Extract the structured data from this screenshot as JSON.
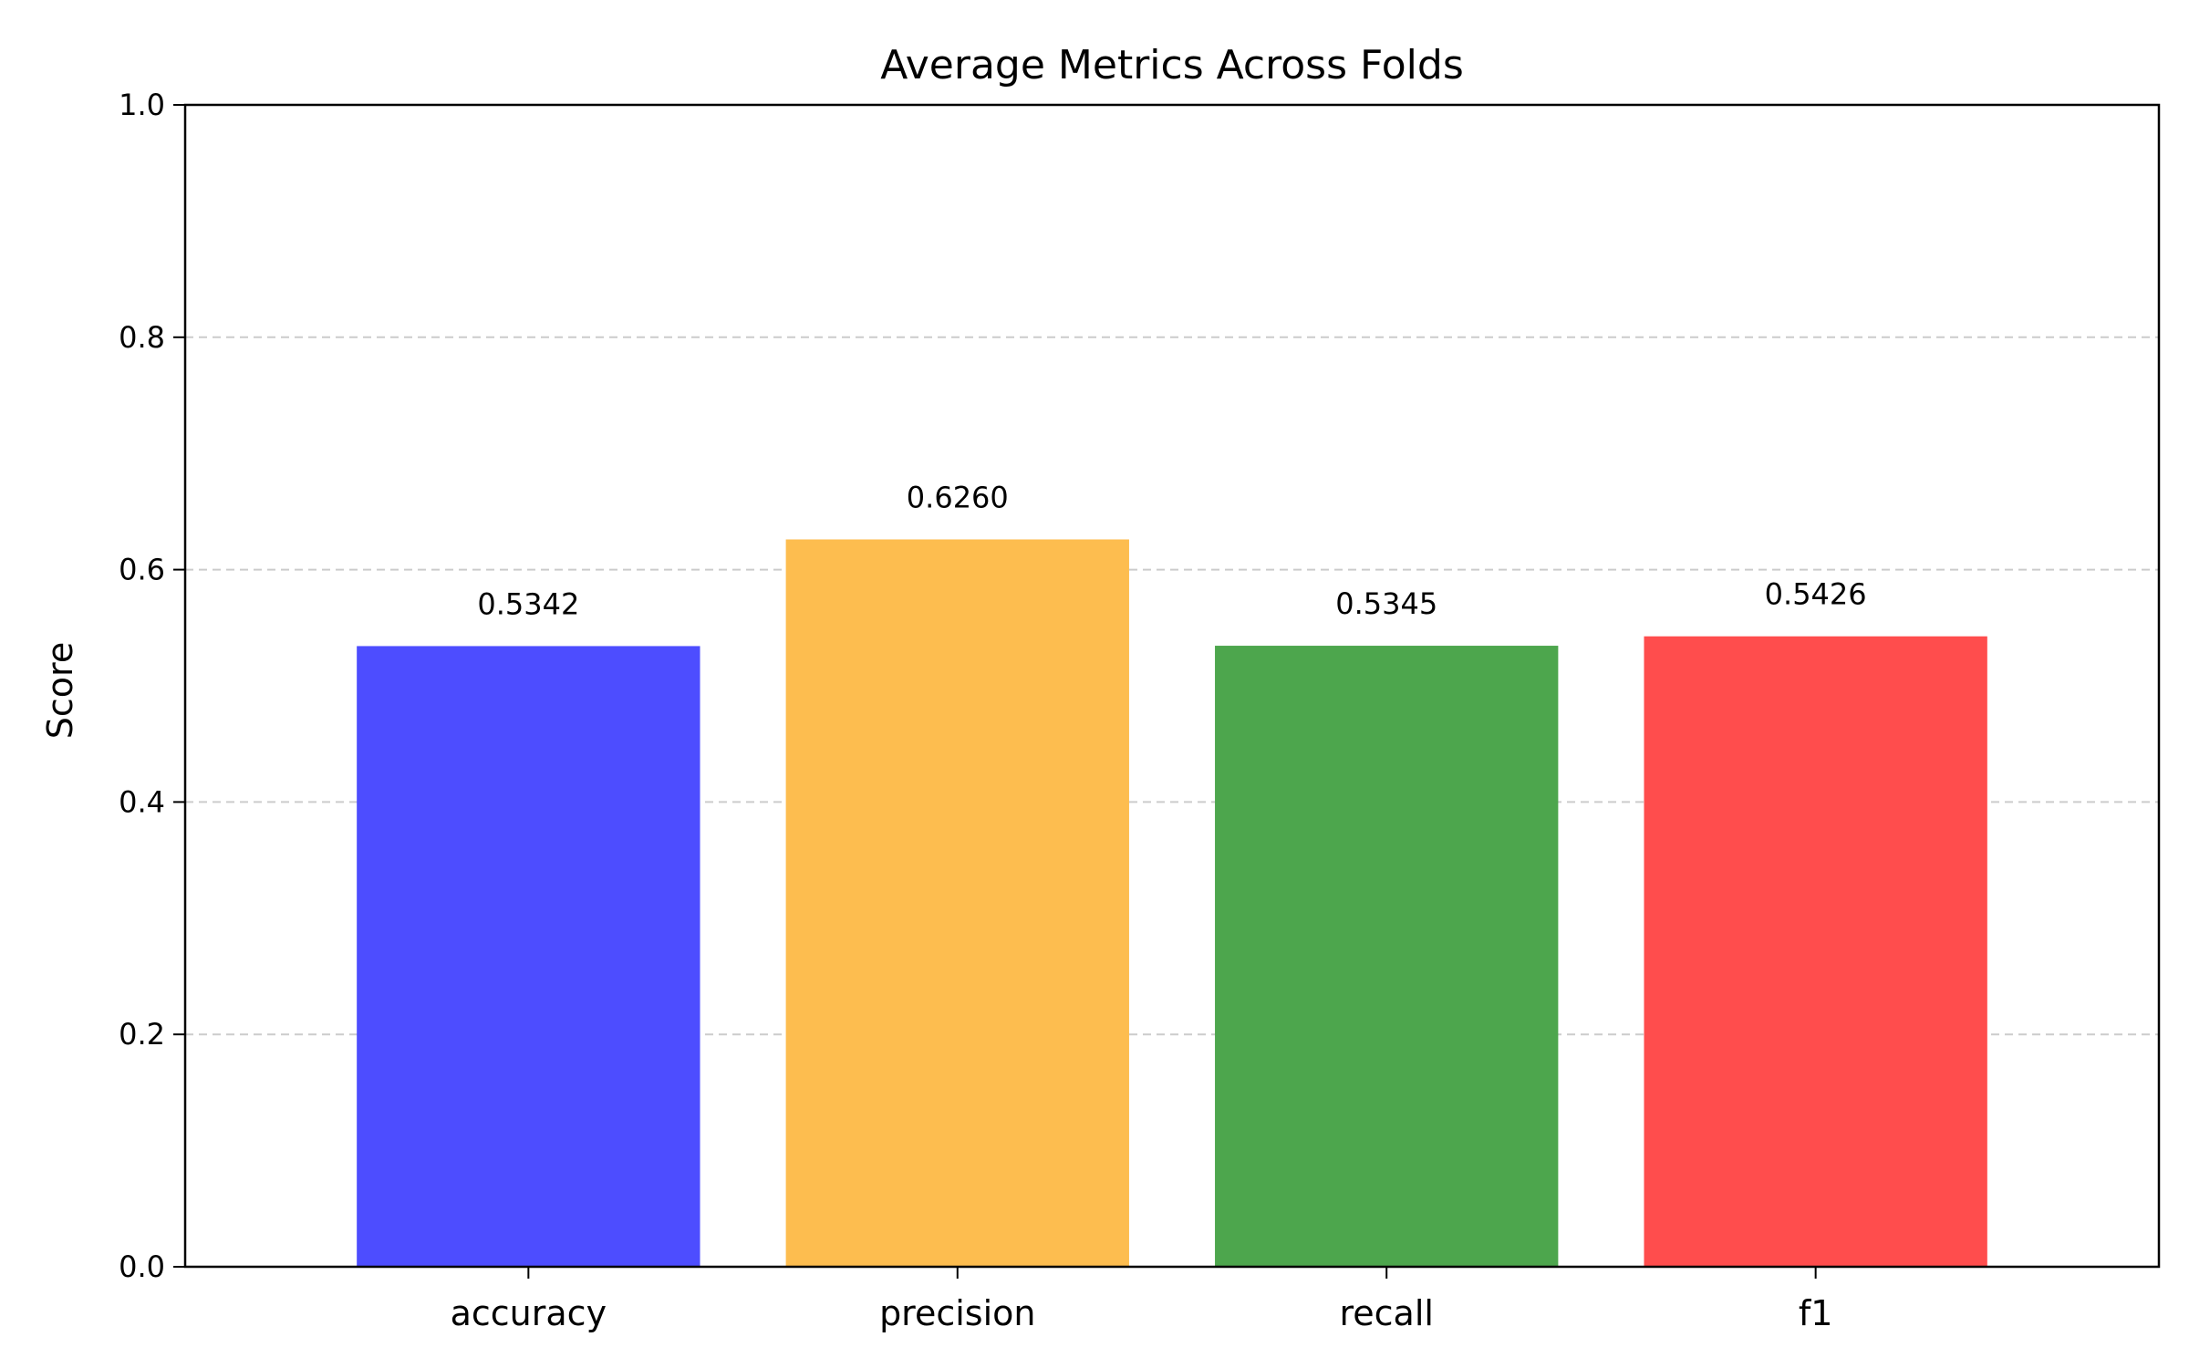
{
  "chart_data": {
    "type": "bar",
    "title": "Average Metrics Across Folds",
    "xlabel": "",
    "ylabel": "Score",
    "ylim": [
      0,
      1.0
    ],
    "yticks": [
      "0.0",
      "0.2",
      "0.4",
      "0.6",
      "0.8",
      "1.0"
    ],
    "grid": "y-dashed",
    "categories": [
      "accuracy",
      "precision",
      "recall",
      "f1"
    ],
    "values": [
      0.5342,
      0.626,
      0.5345,
      0.5426
    ],
    "value_labels": [
      "0.5342",
      "0.6260",
      "0.5345",
      "0.5426"
    ],
    "colors": [
      "#4d4dff",
      "#fdbd4f",
      "#4da64d",
      "#ff4d4d"
    ]
  }
}
